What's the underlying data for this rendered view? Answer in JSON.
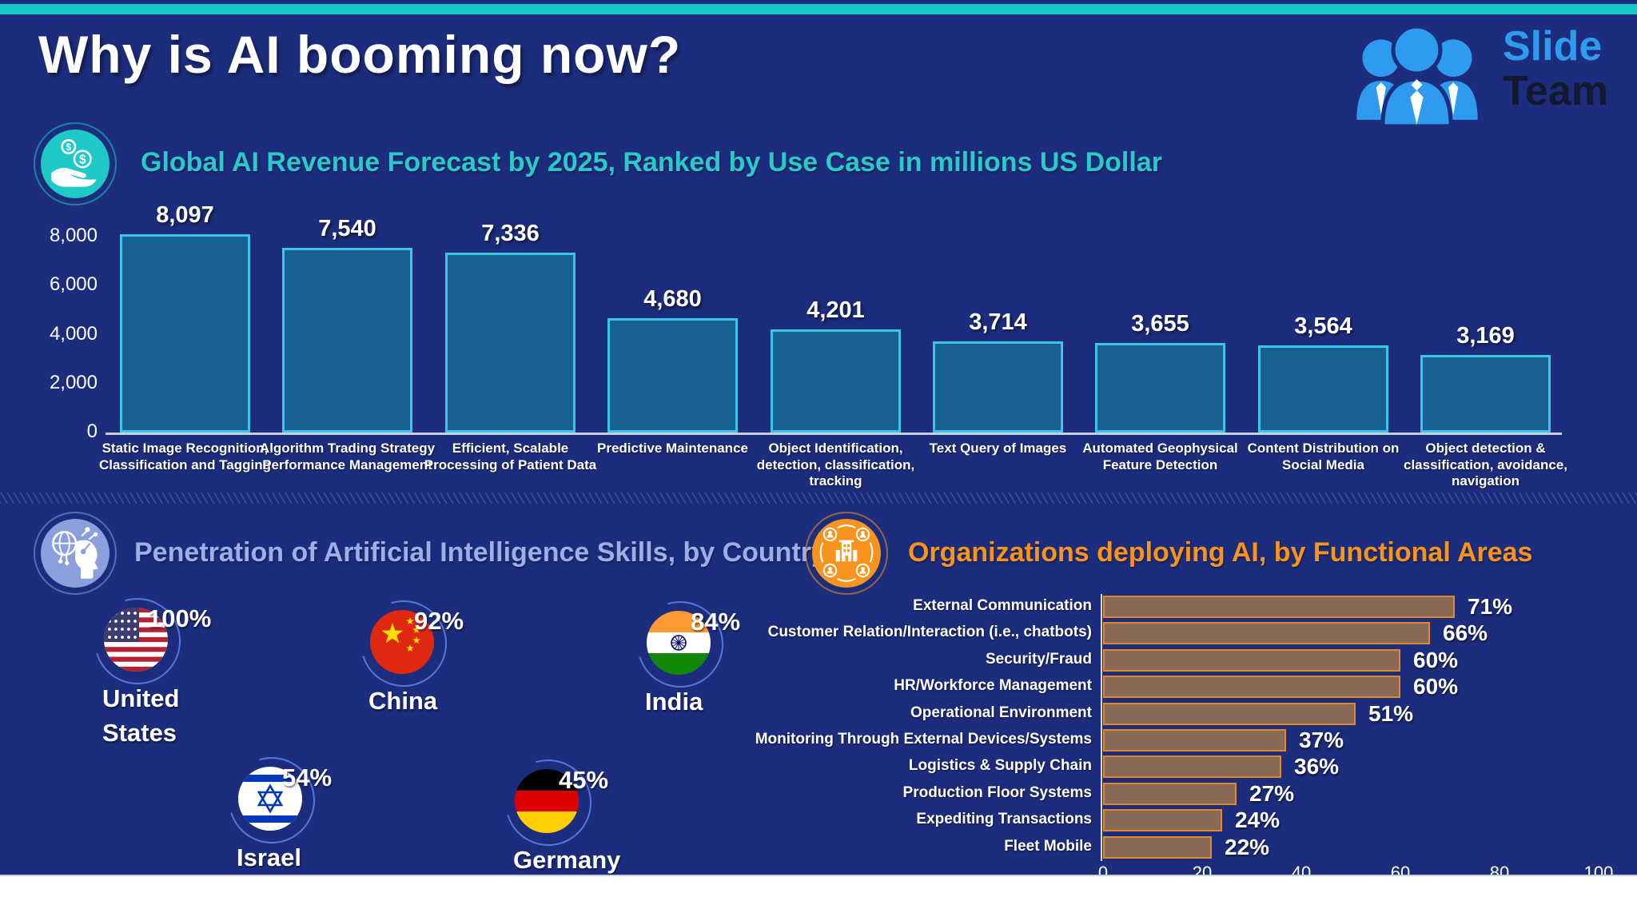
{
  "slide": {
    "title": "Why is AI booming now?"
  },
  "logo": {
    "line1": "Slide",
    "line2": "Team",
    "icon": "slideteam-people-icon",
    "blue": "#2F9BEF",
    "dark": "#14182F"
  },
  "sections": [
    {
      "icon": "money-in-hand-icon",
      "accent": "#1FC9C7"
    },
    {
      "icon": "ai-head-globe-icon",
      "accent": "#8C9FDD"
    },
    {
      "icon": "organization-network-icon",
      "accent": "#F7941E"
    }
  ],
  "colors": {
    "background": "#1D2D7D",
    "top_bar": "#14C8C6",
    "revenue_bar_fill": "#17608F",
    "revenue_bar_border": "#3AC6E9",
    "org_bar_fill": "#8A6A57",
    "org_bar_border": "#E08A2B",
    "skills_title": "#9DAEE9",
    "revenue_title": "#2BC9C9",
    "org_title": "#F7941E"
  },
  "chart_data": [
    {
      "id": "ai_revenue_forecast",
      "type": "bar",
      "title": "Global AI Revenue Forecast by 2025, Ranked by Use Case in millions US Dollar",
      "categories": [
        "Static Image Recognition, Classification and Tagging",
        "Algorithm Trading Strategy Performance Management",
        "Efficient, Scalable Processing of Patient Data",
        "Predictive Maintenance",
        "Object Identification, detection, classification, tracking",
        "Text Query of Images",
        "Automated Geophysical Feature Detection",
        "Content Distribution on Social Media",
        "Object detection & classification, avoidance, navigation"
      ],
      "values": [
        8097,
        7540,
        7336,
        4680,
        4201,
        3714,
        3655,
        3564,
        3169
      ],
      "value_labels": [
        "8,097",
        "7,540",
        "7,336",
        "4,680",
        "4,201",
        "3,714",
        "3,655",
        "3,564",
        "3,169"
      ],
      "ylim": [
        0,
        8000
      ],
      "yticks": [
        0,
        2000,
        4000,
        6000,
        8000
      ],
      "ytick_labels": [
        "0",
        "2,000",
        "4,000",
        "6,000",
        "8,000"
      ],
      "grid": false,
      "legend": "none"
    },
    {
      "id": "ai_skills_penetration_by_country",
      "type": "pictogram",
      "title": "Penetration of Artificial Intelligence Skills, by Country",
      "categories": [
        "United States",
        "China",
        "India",
        "Israel",
        "Germany"
      ],
      "values": [
        100,
        92,
        84,
        54,
        45
      ],
      "value_labels": [
        "100%",
        "92%",
        "84%",
        "54%",
        "45%"
      ],
      "icons": [
        "usa-flag-icon",
        "china-flag-icon",
        "india-flag-icon",
        "israel-flag-icon",
        "germany-flag-icon"
      ]
    },
    {
      "id": "organizations_deploying_ai",
      "type": "bar",
      "orientation": "horizontal",
      "title": "Organizations deploying AI, by Functional Areas",
      "categories": [
        "External Communication",
        "Customer Relation/Interaction (i.e., chatbots)",
        "Security/Fraud",
        "HR/Workforce Management",
        "Operational Environment",
        "Monitoring Through External Devices/Systems",
        "Logistics & Supply Chain",
        "Production Floor Systems",
        "Expediting Transactions",
        "Fleet Mobile"
      ],
      "values": [
        71,
        66,
        60,
        60,
        51,
        37,
        36,
        27,
        24,
        22
      ],
      "value_labels": [
        "71%",
        "66%",
        "60%",
        "60%",
        "51%",
        "37%",
        "36%",
        "27%",
        "24%",
        "22%"
      ],
      "xlim": [
        0,
        100
      ],
      "xticks": [
        0,
        20,
        40,
        60,
        80,
        100
      ],
      "xtick_labels": [
        "0",
        "20",
        "40",
        "60",
        "80",
        "100"
      ],
      "grid": false,
      "legend": "none"
    }
  ]
}
